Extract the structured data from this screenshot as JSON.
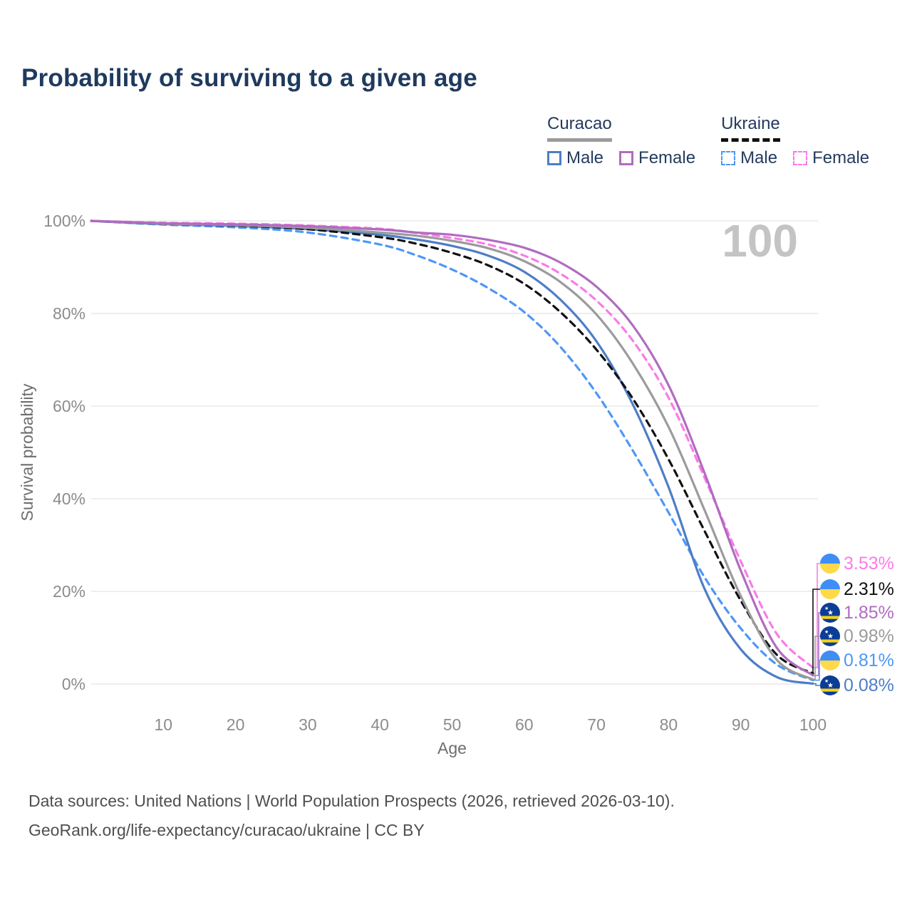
{
  "title": "Probability of surviving to a given age",
  "watermark": "100",
  "colors": {
    "title": "#1f3a5e",
    "grid": "#e8e8e8",
    "tick_label": "#8c8c8c",
    "axis_title": "#6e6e6e",
    "watermark": "#c4c4c4",
    "footer": "#4f4f4f",
    "legend_text": "#243b5e"
  },
  "legend": {
    "groups": [
      {
        "country": "Curacao",
        "line_style": "solid",
        "underline_color": "#9b9b9b",
        "items": [
          {
            "label": "Male",
            "color": "#4d7ec6",
            "dashed": false
          },
          {
            "label": "Female",
            "color": "#b06cc0",
            "dashed": false
          }
        ]
      },
      {
        "country": "Ukraine",
        "line_style": "dashed",
        "underline_color": "#111111",
        "items": [
          {
            "label": "Male",
            "color": "#4d97f8",
            "dashed": true
          },
          {
            "label": "Female",
            "color": "#fb7be8",
            "dashed": true
          }
        ]
      }
    ]
  },
  "flags": {
    "ukraine": {
      "top": "#3f8ef6",
      "bottom": "#ffd94a"
    },
    "curacao": {
      "bg": "#0b3d96",
      "stripe": "#f7d116",
      "star": "#ffffff"
    }
  },
  "chart_data": {
    "type": "line",
    "title": "Probability of surviving to a given age",
    "xlabel": "Age",
    "ylabel": "Survival probability",
    "xlim": [
      0,
      100
    ],
    "ylim": [
      0,
      100
    ],
    "grid": "horizontal",
    "legend_position": "top-right",
    "x_ticks": [
      10,
      20,
      30,
      40,
      50,
      60,
      70,
      80,
      90,
      100
    ],
    "y_ticks": [
      0,
      20,
      40,
      60,
      80,
      100
    ],
    "y_tick_labels": [
      "0%",
      "20%",
      "40%",
      "60%",
      "80%",
      "100%"
    ],
    "x": [
      0,
      10,
      20,
      30,
      40,
      45,
      50,
      55,
      60,
      65,
      70,
      75,
      80,
      85,
      90,
      95,
      100
    ],
    "series": [
      {
        "name": "Ukraine Male",
        "country": "Ukraine",
        "sex": "male",
        "flag": "ukraine",
        "color": "#4d97f8",
        "dashed": true,
        "end_label": "0.81%",
        "end_value": 0.81,
        "values": [
          100,
          99.2,
          98.6,
          97.5,
          94.9,
          92.6,
          89.5,
          85.5,
          80.3,
          72.8,
          62.8,
          50.5,
          37.0,
          23.0,
          12.0,
          4.2,
          0.81
        ]
      },
      {
        "name": "Curacao Male",
        "country": "Curacao",
        "sex": "male",
        "flag": "curacao",
        "color": "#4d7ec6",
        "dashed": false,
        "end_label": "0.08%",
        "end_value": 0.08,
        "values": [
          100,
          99.3,
          98.9,
          98.2,
          97.0,
          96.0,
          94.6,
          92.5,
          89.0,
          83.0,
          74.0,
          60.5,
          42.5,
          20.5,
          7.5,
          1.5,
          0.08
        ]
      },
      {
        "name": "Ukraine Both sexes",
        "country": "Ukraine",
        "sex": "total",
        "flag": "ukraine",
        "color": "#111111",
        "dashed": true,
        "end_label": "2.31%",
        "end_value": 2.31,
        "values": [
          100,
          99.4,
          99.0,
          98.2,
          96.5,
          95.1,
          93.1,
          90.4,
          86.4,
          80.3,
          72.2,
          61.7,
          48.5,
          33.0,
          18.0,
          6.3,
          2.31
        ]
      },
      {
        "name": "Curacao Both sexes",
        "country": "Curacao",
        "sex": "total",
        "flag": "curacao",
        "color": "#9b9b9b",
        "dashed": false,
        "end_label": "0.98%",
        "end_value": 0.98,
        "values": [
          100,
          99.4,
          99.1,
          98.5,
          97.5,
          96.8,
          95.7,
          94.1,
          91.3,
          86.8,
          79.8,
          69.3,
          55.5,
          37.5,
          19.0,
          5.2,
          0.98
        ]
      },
      {
        "name": "Ukraine Female",
        "country": "Ukraine",
        "sex": "female",
        "flag": "ukraine",
        "color": "#fb7be8",
        "dashed": true,
        "end_label": "3.53%",
        "end_value": 3.53,
        "values": [
          100,
          99.6,
          99.4,
          99.0,
          98.3,
          97.4,
          96.3,
          94.9,
          92.5,
          88.6,
          82.8,
          74.2,
          61.8,
          44.5,
          26.5,
          10.8,
          3.53
        ]
      },
      {
        "name": "Curacao Female",
        "country": "Curacao",
        "sex": "female",
        "flag": "curacao",
        "color": "#b06cc0",
        "dashed": false,
        "end_label": "1.85%",
        "end_value": 1.85,
        "values": [
          100,
          99.5,
          99.25,
          98.85,
          98.15,
          97.5,
          97.0,
          95.9,
          94.2,
          91.0,
          85.8,
          77.5,
          64.5,
          45.5,
          24.5,
          7.8,
          1.85
        ]
      }
    ]
  },
  "footer": {
    "line1": "Data sources: United Nations | World Population Prospects (2026, retrieved 2026-03-10).",
    "line2": "GeoRank.org/life-expectancy/curacao/ukraine | CC BY"
  }
}
